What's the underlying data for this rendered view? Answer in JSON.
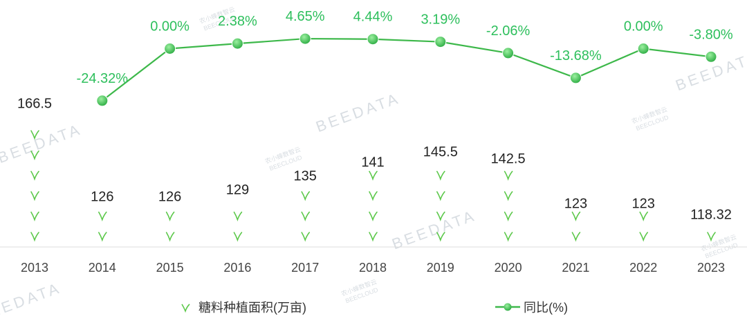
{
  "chart_data": {
    "type": "bar+line",
    "categories": [
      "2013",
      "2014",
      "2015",
      "2016",
      "2017",
      "2018",
      "2019",
      "2020",
      "2021",
      "2022",
      "2023"
    ],
    "series": [
      {
        "name": "糖料种植面积(万亩)",
        "type": "pictorial-bar",
        "values": [
          166.5,
          126,
          126,
          129,
          135,
          141,
          145.5,
          142.5,
          123,
          123,
          118.32
        ],
        "labels": [
          "166.5",
          "126",
          "126",
          "129",
          "135",
          "141",
          "145.5",
          "142.5",
          "123",
          "123",
          "118.32"
        ]
      },
      {
        "name": "同比(%)",
        "type": "line",
        "values": [
          null,
          -24.32,
          0.0,
          2.38,
          4.65,
          4.44,
          3.19,
          -2.06,
          -13.68,
          0.0,
          -3.8
        ],
        "labels": [
          "",
          "-24.32%",
          "0.00%",
          "2.38%",
          "4.65%",
          "4.44%",
          "3.19%",
          "-2.06%",
          "-13.68%",
          "0.00%",
          "-3.80%"
        ]
      }
    ],
    "legend": {
      "position": "bottom",
      "items": [
        "糖料种植面积(万亩)",
        "同比(%)"
      ]
    },
    "colors": {
      "line": "#3db84a",
      "marker": "#4cc85a",
      "label": "#2dbf5c",
      "sprout": "#5cc84a"
    }
  },
  "watermark": {
    "text": "BEEDATA",
    "cn": "农小蜂数智云",
    "en": "BEECLOUD"
  }
}
